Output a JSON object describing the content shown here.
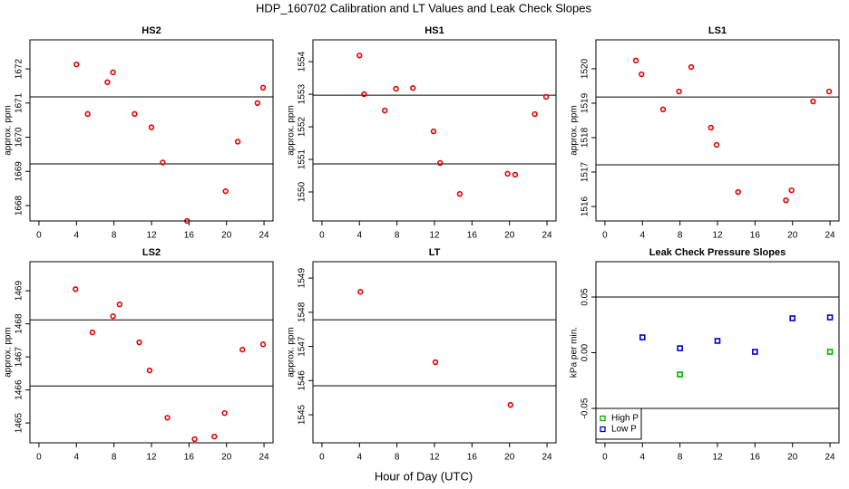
{
  "title": "HDP_160702  Calibration and LT Values and Leak Check Slopes",
  "xlabel": "Hour of Day (UTC)",
  "chart_data": [
    {
      "type": "scatter",
      "title": "HS2",
      "ylabel": "approx. ppm",
      "marker": "circle",
      "xlim": [
        -0.96,
        24.96
      ],
      "xticks": [
        0,
        4,
        8,
        12,
        16,
        20,
        24
      ],
      "ylim": [
        1667.55,
        1672.85
      ],
      "yticks": [
        1668,
        1669,
        1670,
        1671,
        1672
      ],
      "hlines": [
        1671.18,
        1669.22
      ],
      "series": [
        {
          "color": "#e00000",
          "x": [
            4.0,
            5.2,
            7.3,
            7.9,
            10.2,
            12.0,
            13.2,
            15.8,
            19.9,
            21.2,
            23.3,
            23.9
          ],
          "values": [
            1672.13,
            1670.68,
            1671.61,
            1671.9,
            1670.68,
            1670.29,
            1669.26,
            1667.55,
            1668.42,
            1669.87,
            1671.0,
            1671.45
          ]
        }
      ]
    },
    {
      "type": "scatter",
      "title": "HS1",
      "ylabel": "approx. ppm",
      "marker": "circle",
      "xlim": [
        -0.96,
        24.96
      ],
      "xticks": [
        0,
        4,
        8,
        12,
        16,
        20,
        24
      ],
      "ylim": [
        1549.11,
        1554.67
      ],
      "yticks": [
        1550,
        1551,
        1552,
        1553,
        1554
      ],
      "hlines": [
        1552.97,
        1550.86
      ],
      "series": [
        {
          "color": "#e00000",
          "x": [
            4.0,
            4.5,
            6.7,
            7.9,
            9.7,
            11.9,
            12.6,
            14.7,
            19.8,
            20.6,
            22.7,
            23.9
          ],
          "values": [
            1554.19,
            1553.0,
            1552.5,
            1553.17,
            1553.19,
            1551.86,
            1550.89,
            1549.94,
            1550.56,
            1550.53,
            1552.39,
            1552.92
          ]
        }
      ]
    },
    {
      "type": "scatter",
      "title": "LS1",
      "ylabel": "approx. ppm",
      "marker": "circle",
      "xlim": [
        -0.96,
        24.96
      ],
      "xticks": [
        0,
        4,
        8,
        12,
        16,
        20,
        24
      ],
      "ylim": [
        1515.58,
        1520.84
      ],
      "yticks": [
        1516,
        1517,
        1518,
        1519,
        1520
      ],
      "hlines": [
        1519.18,
        1517.21
      ],
      "series": [
        {
          "color": "#e00000",
          "x": [
            3.3,
            3.9,
            6.2,
            7.9,
            9.2,
            11.3,
            11.9,
            14.2,
            19.3,
            19.9,
            22.2,
            23.9
          ],
          "values": [
            1520.24,
            1519.84,
            1518.82,
            1519.34,
            1520.05,
            1518.29,
            1517.79,
            1516.42,
            1516.18,
            1516.47,
            1519.05,
            1519.34
          ]
        }
      ]
    },
    {
      "type": "scatter",
      "title": "LS2",
      "ylabel": "approx. ppm",
      "marker": "circle",
      "xlim": [
        -0.96,
        24.96
      ],
      "xticks": [
        0,
        4,
        8,
        12,
        16,
        20,
        24
      ],
      "ylim": [
        1464.4,
        1469.88
      ],
      "yticks": [
        1465,
        1466,
        1467,
        1468,
        1469
      ],
      "hlines": [
        1468.12,
        1466.12
      ],
      "series": [
        {
          "color": "#e00000",
          "x": [
            3.9,
            5.7,
            7.9,
            8.6,
            10.7,
            11.8,
            13.7,
            16.6,
            18.7,
            19.8,
            21.7,
            23.9
          ],
          "values": [
            1469.05,
            1467.74,
            1468.23,
            1468.59,
            1467.44,
            1466.59,
            1465.16,
            1464.51,
            1464.59,
            1465.3,
            1467.22,
            1467.38
          ]
        }
      ]
    },
    {
      "type": "scatter",
      "title": "LT",
      "ylabel": "approx. ppm",
      "marker": "circle",
      "xlim": [
        -0.96,
        24.96
      ],
      "xticks": [
        0,
        4,
        8,
        12,
        16,
        20,
        24
      ],
      "ylim": [
        1544.18,
        1549.48
      ],
      "yticks": [
        1545,
        1546,
        1547,
        1548,
        1549
      ],
      "hlines": [
        1547.78,
        1545.85
      ],
      "series": [
        {
          "color": "#e00000",
          "x": [
            4.1,
            12.1,
            20.1
          ],
          "values": [
            1548.6,
            1546.54,
            1545.29
          ]
        }
      ]
    },
    {
      "type": "scatter",
      "title": "Leak Check Pressure Slopes",
      "ylabel": "kPa per min.",
      "marker": "square",
      "xlim": [
        -0.96,
        24.96
      ],
      "xticks": [
        0,
        4,
        8,
        12,
        16,
        20,
        24
      ],
      "ylim": [
        -0.0809,
        0.0817
      ],
      "yticks": [
        -0.05,
        {
          "value": 0,
          "label": "0.00"
        },
        0.05
      ],
      "hlines": [
        0.05,
        -0.05
      ],
      "legend": "bottomleft",
      "series": [
        {
          "name": "High P",
          "color": "#00b000",
          "x": [
            8,
            24
          ],
          "values": [
            -0.0195,
            0.0008
          ]
        },
        {
          "name": "Low P",
          "color": "#0000d0",
          "x": [
            4,
            8,
            12,
            16,
            20,
            24
          ],
          "values": [
            0.0138,
            0.004,
            0.0106,
            0.0008,
            0.0309,
            0.0317
          ]
        }
      ]
    }
  ]
}
